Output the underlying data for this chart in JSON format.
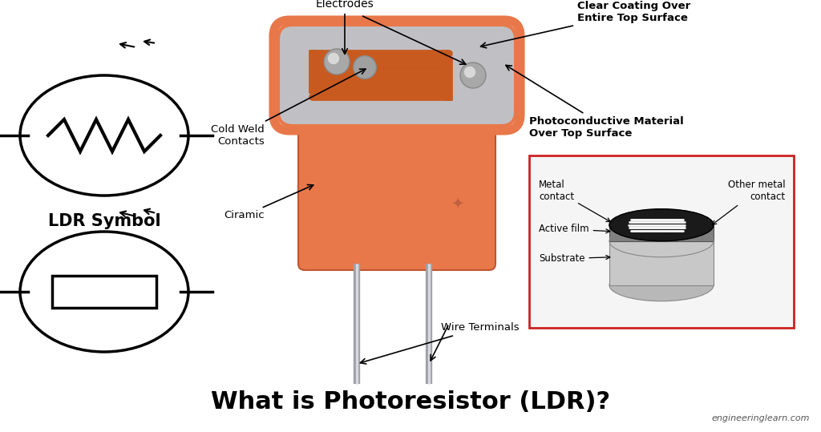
{
  "bg_color": "#ffffff",
  "title": "What is Photoresistor (LDR)?",
  "title_fontsize": 22,
  "watermark": "engineeringlearn.com",
  "ldr_symbol_label": "LDR Symbol",
  "ldr_body_color": "#E8784A",
  "ldr_body_side_color": "#D4623A",
  "ldr_top_color": "#C8C8C8",
  "ldr_track_color": "#C85A20",
  "ldr_lead_color": "#B0B0B8",
  "ldr_electrode_color": "#909090",
  "inset_border_color": "#CC2222",
  "symbol_color": "#000000"
}
